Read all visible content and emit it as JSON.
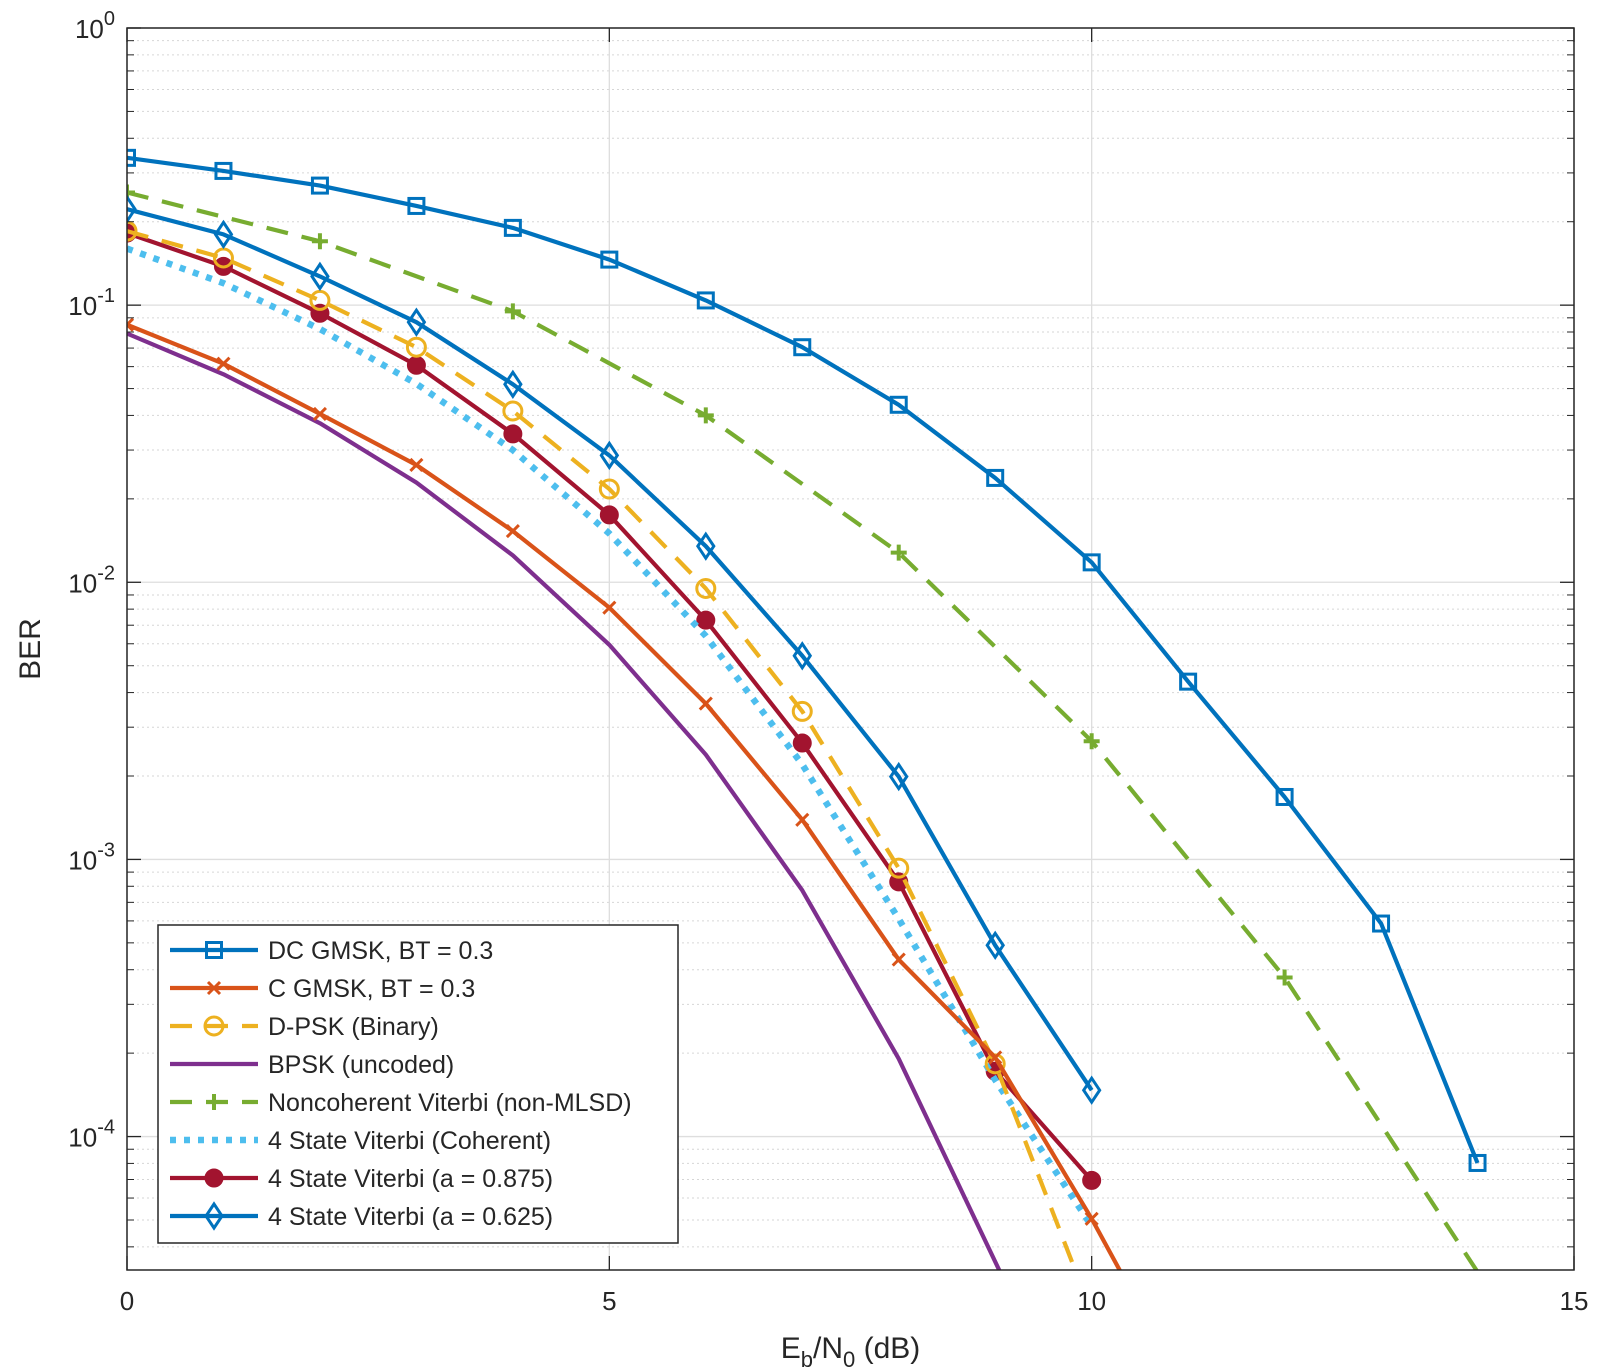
{
  "chart_data": {
    "type": "line",
    "title": "",
    "xlabel": {
      "main": "E",
      "sub1": "b",
      "mid": "/N",
      "sub2": "0",
      "tail": " (dB)"
    },
    "ylabel": "BER",
    "xlim": [
      0,
      15
    ],
    "ylim": [
      3.3e-05,
      1
    ],
    "yscale": "log",
    "grid": true,
    "legend_position": "lower-left",
    "x_ticks": [
      {
        "value": 0,
        "label": "0"
      },
      {
        "value": 5,
        "label": "5"
      },
      {
        "value": 10,
        "label": "10"
      },
      {
        "value": 15,
        "label": "15"
      }
    ],
    "y_ticks": [
      {
        "value": 1,
        "base": "10",
        "exp": "0"
      },
      {
        "value": 0.1,
        "base": "10",
        "exp": "-1"
      },
      {
        "value": 0.01,
        "base": "10",
        "exp": "-2"
      },
      {
        "value": 0.001,
        "base": "10",
        "exp": "-3"
      },
      {
        "value": 0.0001,
        "base": "10",
        "exp": "-4"
      }
    ],
    "series": [
      {
        "name": "DC GMSK, BT = 0.3",
        "color": "#0072BD",
        "dash": "solid",
        "marker": "square",
        "x": [
          0,
          1,
          2,
          3,
          4,
          5,
          6,
          7,
          8,
          9,
          10,
          11,
          12,
          13,
          14
        ],
        "y": [
          0.34,
          0.305,
          0.27,
          0.228,
          0.19,
          0.146,
          0.104,
          0.0705,
          0.0437,
          0.0238,
          0.0118,
          0.00438,
          0.00168,
          0.000587,
          8.03e-05
        ]
      },
      {
        "name": "C GMSK, BT = 0.3",
        "color": "#D95319",
        "dash": "solid",
        "marker": "x",
        "x": [
          0,
          1,
          2,
          3,
          4,
          5,
          6,
          7,
          8,
          9,
          10,
          10.3
        ],
        "y": [
          0.085,
          0.0615,
          0.0405,
          0.0265,
          0.0153,
          0.0081,
          0.00365,
          0.00139,
          0.000435,
          0.000193,
          5.05e-05,
          3.25e-05
        ]
      },
      {
        "name": "D-PSK (Binary)",
        "color": "#EDB120",
        "dash": "dashed",
        "marker": "circle",
        "x": [
          0,
          1,
          2,
          3,
          4,
          5,
          6,
          7,
          8,
          9,
          9.8
        ],
        "y": [
          0.185,
          0.148,
          0.104,
          0.0705,
          0.0415,
          0.0217,
          0.0095,
          0.00342,
          0.00093,
          0.000183,
          3.5e-05
        ]
      },
      {
        "name": "BPSK (uncoded)",
        "color": "#7E2F8E",
        "dash": "solid",
        "marker": "none",
        "x": [
          0,
          1,
          2,
          3,
          4,
          5,
          6,
          7,
          8,
          9.05
        ],
        "y": [
          0.079,
          0.0563,
          0.0375,
          0.0229,
          0.0125,
          0.00595,
          0.00239,
          0.000773,
          0.000191,
          3.25e-05
        ]
      },
      {
        "name": "Noncoherent Viterbi (non-MLSD)",
        "color": "#77AC30",
        "dash": "dashed",
        "marker": "plus",
        "x": [
          0,
          2,
          4,
          6,
          8,
          10,
          12,
          14
        ],
        "y": [
          0.255,
          0.17,
          0.095,
          0.04,
          0.0128,
          0.00267,
          0.000375,
          3.25e-05
        ]
      },
      {
        "name": "4 State Viterbi (Coherent)",
        "color": "#4DBEEE",
        "dash": "dotted",
        "marker": "none",
        "x": [
          0,
          1,
          2,
          3,
          4,
          5,
          6,
          7,
          8,
          9,
          10
        ],
        "y": [
          0.16,
          0.12,
          0.082,
          0.052,
          0.03,
          0.015,
          0.0064,
          0.0022,
          0.00061,
          0.00016,
          4.75e-05
        ]
      },
      {
        "name": "4 State Viterbi (a = 0.875)",
        "color": "#A2142F",
        "dash": "solid",
        "marker": "dot",
        "x": [
          0,
          1,
          2,
          3,
          4,
          5,
          6,
          7,
          8,
          9,
          10
        ],
        "y": [
          0.182,
          0.138,
          0.0935,
          0.0607,
          0.0343,
          0.0175,
          0.0073,
          0.00263,
          0.00083,
          0.000172,
          6.95e-05
        ]
      },
      {
        "name": "4 State Viterbi (a = 0.625)",
        "color": "#0072BD",
        "dash": "solid",
        "marker": "diamond",
        "x": [
          0,
          1,
          2,
          3,
          4,
          5,
          6,
          7,
          8,
          9,
          10
        ],
        "y": [
          0.222,
          0.18,
          0.127,
          0.0868,
          0.0518,
          0.0287,
          0.0135,
          0.00543,
          0.00199,
          0.00049,
          0.000147
        ]
      }
    ]
  }
}
